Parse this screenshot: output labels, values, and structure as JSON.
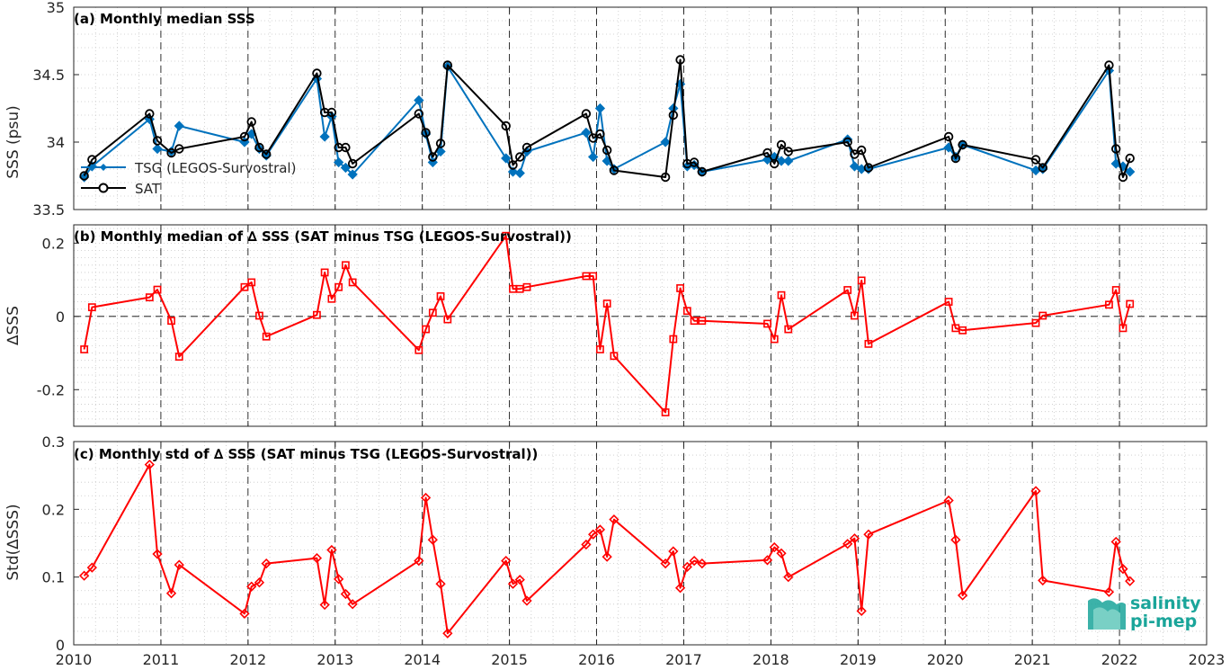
{
  "logo": {
    "line1": "salinity",
    "line2": "pi-mep",
    "color": "#1aa59a"
  },
  "colors": {
    "tsg": "#0072BD",
    "sat": "#000000",
    "delta": "#FF0000"
  },
  "chart_data": [
    {
      "type": "line",
      "title": "(a) Monthly median SSS",
      "ylabel": "SSS (psu)",
      "xlim": [
        2010,
        2023
      ],
      "ylim": [
        33.5,
        35
      ],
      "xticks": [
        "2010",
        "2011",
        "2012",
        "2013",
        "2014",
        "2015",
        "2016",
        "2017",
        "2018",
        "2019",
        "2020",
        "2021",
        "2022",
        "2023"
      ],
      "yticks": [
        "33.5",
        "34",
        "34.5",
        "35"
      ],
      "grid": true,
      "legend_position": "bottom-left",
      "series": [
        {
          "name": "TSG (LEGOS-Survostral)",
          "marker": "diamond",
          "x": [
            2010.12,
            2010.21,
            2010.87,
            2010.96,
            2011.12,
            2011.21,
            2011.96,
            2012.04,
            2012.13,
            2012.21,
            2012.79,
            2012.88,
            2012.96,
            2013.04,
            2013.12,
            2013.2,
            2013.96,
            2014.04,
            2014.12,
            2014.21,
            2014.29,
            2014.96,
            2015.04,
            2015.12,
            2015.2,
            2015.88,
            2015.96,
            2016.04,
            2016.12,
            2016.2,
            2016.79,
            2016.88,
            2016.96,
            2017.04,
            2017.12,
            2017.21,
            2017.96,
            2018.04,
            2018.12,
            2018.2,
            2018.88,
            2018.96,
            2019.04,
            2019.12,
            2020.04,
            2020.12,
            2020.2,
            2021.04,
            2021.12,
            2021.88,
            2021.96,
            2022.04,
            2022.12
          ],
          "y": [
            33.74,
            33.82,
            34.17,
            33.95,
            33.93,
            34.12,
            34.0,
            34.06,
            33.95,
            33.9,
            34.47,
            34.04,
            34.19,
            33.85,
            33.81,
            33.76,
            34.31,
            34.06,
            33.85,
            33.93,
            34.56,
            33.88,
            33.78,
            33.77,
            33.93,
            34.07,
            33.89,
            34.25,
            33.86,
            33.8,
            34.0,
            34.25,
            34.43,
            33.82,
            33.83,
            33.78,
            33.87,
            33.89,
            33.86,
            33.86,
            34.02,
            33.82,
            33.8,
            33.8,
            33.96,
            33.89,
            33.98,
            33.79,
            33.8,
            34.53,
            33.84,
            33.82,
            33.78
          ]
        },
        {
          "name": "SAT",
          "marker": "circle",
          "x": [
            2010.12,
            2010.21,
            2010.87,
            2010.96,
            2011.12,
            2011.21,
            2011.96,
            2012.04,
            2012.13,
            2012.21,
            2012.79,
            2012.88,
            2012.96,
            2013.04,
            2013.12,
            2013.2,
            2013.96,
            2014.04,
            2014.12,
            2014.21,
            2014.29,
            2014.96,
            2015.04,
            2015.12,
            2015.2,
            2015.88,
            2015.96,
            2016.04,
            2016.12,
            2016.2,
            2016.79,
            2016.88,
            2016.96,
            2017.04,
            2017.12,
            2017.21,
            2017.96,
            2018.04,
            2018.12,
            2018.2,
            2018.88,
            2018.96,
            2019.04,
            2019.12,
            2020.04,
            2020.12,
            2020.2,
            2021.04,
            2021.12,
            2021.88,
            2021.96,
            2022.04,
            2022.12
          ],
          "y": [
            33.75,
            33.87,
            34.21,
            34.01,
            33.92,
            33.95,
            34.04,
            34.15,
            33.96,
            33.91,
            34.51,
            34.22,
            34.22,
            33.96,
            33.96,
            33.84,
            34.21,
            34.07,
            33.89,
            33.99,
            34.57,
            34.12,
            33.83,
            33.89,
            33.96,
            34.21,
            34.03,
            34.06,
            33.94,
            33.79,
            33.74,
            34.2,
            34.61,
            33.84,
            33.85,
            33.78,
            33.92,
            33.84,
            33.98,
            33.93,
            34.0,
            33.91,
            33.94,
            33.81,
            34.04,
            33.88,
            33.98,
            33.87,
            33.81,
            34.57,
            33.95,
            33.74,
            33.88
          ]
        }
      ]
    },
    {
      "type": "line",
      "title": "(b) Monthly median of ∆ SSS (SAT minus TSG (LEGOS-Survostral))",
      "ylabel": "∆SSS",
      "xlim": [
        2010,
        2023
      ],
      "ylim": [
        -0.3,
        0.25
      ],
      "xticks": [
        "2010",
        "2011",
        "2012",
        "2013",
        "2014",
        "2015",
        "2016",
        "2017",
        "2018",
        "2019",
        "2020",
        "2021",
        "2022",
        "2023"
      ],
      "yticks": [
        "-0.2",
        "0",
        "0.2"
      ],
      "grid": true,
      "series": [
        {
          "marker": "square",
          "x": [
            2010.12,
            2010.21,
            2010.87,
            2010.96,
            2011.12,
            2011.21,
            2011.96,
            2012.04,
            2012.13,
            2012.21,
            2012.79,
            2012.88,
            2012.96,
            2013.04,
            2013.12,
            2013.2,
            2013.96,
            2014.04,
            2014.12,
            2014.21,
            2014.29,
            2014.96,
            2015.04,
            2015.12,
            2015.2,
            2015.88,
            2015.96,
            2016.04,
            2016.12,
            2016.2,
            2016.79,
            2016.88,
            2016.96,
            2017.04,
            2017.12,
            2017.21,
            2017.96,
            2018.04,
            2018.12,
            2018.2,
            2018.88,
            2018.96,
            2019.04,
            2019.12,
            2020.04,
            2020.12,
            2020.2,
            2021.04,
            2021.12,
            2021.88,
            2021.96,
            2022.04,
            2022.12
          ],
          "y": [
            -0.09,
            0.025,
            0.052,
            0.073,
            -0.012,
            -0.11,
            0.08,
            0.093,
            0.002,
            -0.055,
            0.004,
            0.12,
            0.048,
            0.08,
            0.14,
            0.093,
            -0.092,
            -0.035,
            0.01,
            0.055,
            -0.008,
            0.22,
            0.075,
            0.075,
            0.08,
            0.11,
            0.11,
            -0.09,
            0.035,
            -0.108,
            -0.262,
            -0.062,
            0.077,
            0.015,
            -0.012,
            -0.012,
            -0.02,
            -0.062,
            0.058,
            -0.035,
            0.072,
            0.002,
            0.098,
            -0.075,
            0.04,
            -0.032,
            -0.038,
            -0.018,
            0.002,
            0.032,
            0.072,
            -0.032,
            0.034
          ]
        }
      ]
    },
    {
      "type": "line",
      "title": "(c) Monthly std of ∆ SSS (SAT minus TSG (LEGOS-Survostral))",
      "ylabel": "Std(∆SSS)",
      "xlim": [
        2010,
        2023
      ],
      "ylim": [
        0,
        0.3
      ],
      "xticks": [
        "2010",
        "2011",
        "2012",
        "2013",
        "2014",
        "2015",
        "2016",
        "2017",
        "2018",
        "2019",
        "2020",
        "2021",
        "2022",
        "2023"
      ],
      "yticks": [
        "0",
        "0.1",
        "0.2",
        "0.3"
      ],
      "grid": true,
      "series": [
        {
          "marker": "diamond",
          "x": [
            2010.12,
            2010.21,
            2010.87,
            2010.96,
            2011.12,
            2011.21,
            2011.96,
            2012.04,
            2012.13,
            2012.21,
            2012.79,
            2012.88,
            2012.96,
            2013.04,
            2013.12,
            2013.2,
            2013.96,
            2014.04,
            2014.12,
            2014.21,
            2014.29,
            2014.96,
            2015.04,
            2015.12,
            2015.2,
            2015.88,
            2015.96,
            2016.04,
            2016.12,
            2016.2,
            2016.79,
            2016.88,
            2016.96,
            2017.04,
            2017.12,
            2017.21,
            2017.96,
            2018.04,
            2018.12,
            2018.2,
            2018.88,
            2018.96,
            2019.04,
            2019.12,
            2020.04,
            2020.12,
            2020.2,
            2021.04,
            2021.12,
            2021.88,
            2021.96,
            2022.04,
            2022.12
          ],
          "y": [
            0.102,
            0.114,
            0.266,
            0.134,
            0.076,
            0.118,
            0.046,
            0.086,
            0.092,
            0.12,
            0.128,
            0.059,
            0.14,
            0.097,
            0.075,
            0.06,
            0.124,
            0.217,
            0.155,
            0.09,
            0.017,
            0.124,
            0.09,
            0.096,
            0.065,
            0.148,
            0.163,
            0.17,
            0.13,
            0.185,
            0.12,
            0.138,
            0.084,
            0.115,
            0.124,
            0.12,
            0.125,
            0.144,
            0.135,
            0.1,
            0.149,
            0.157,
            0.05,
            0.163,
            0.213,
            0.155,
            0.073,
            0.227,
            0.095,
            0.078,
            0.152,
            0.112,
            0.094
          ]
        }
      ]
    }
  ]
}
